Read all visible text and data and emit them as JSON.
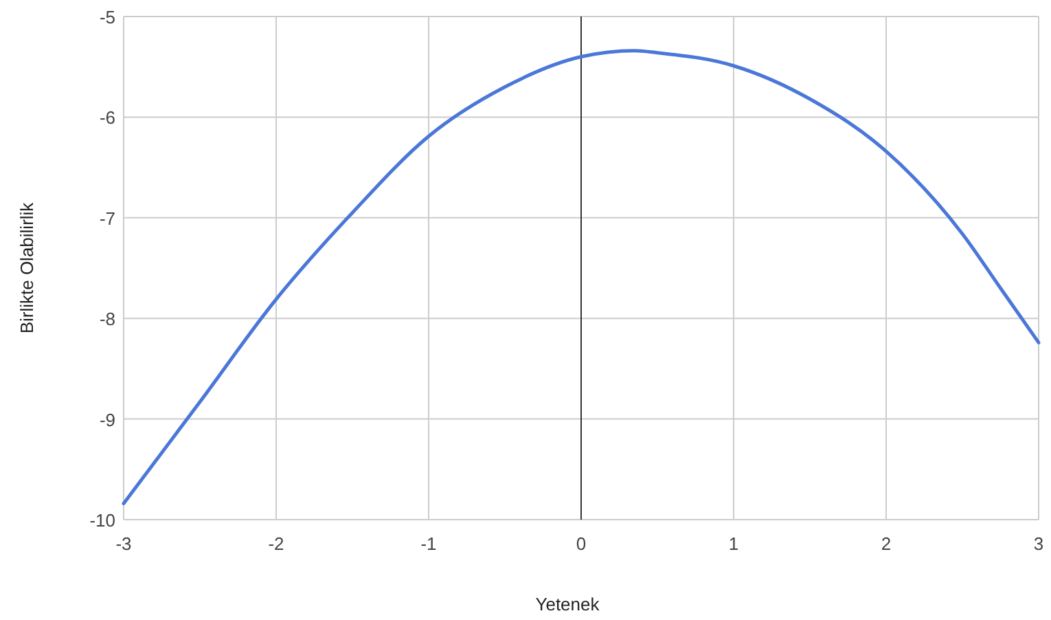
{
  "chart_data": {
    "type": "line",
    "xlabel": "Yetenek",
    "ylabel": "Birlikte Olabilirlik",
    "x": [
      -3,
      -2.5,
      -2,
      -1.5,
      -1,
      -0.5,
      0,
      0.35,
      0.5,
      1,
      1.5,
      2,
      2.5,
      2.75,
      3
    ],
    "series": [
      {
        "color": "#4a77d8",
        "values": [
          -9.84,
          -8.83,
          -7.81,
          -6.95,
          -6.19,
          -5.7,
          -5.4,
          -5.34,
          -5.36,
          -5.49,
          -5.82,
          -6.34,
          -7.16,
          -7.7,
          -8.24
        ]
      }
    ],
    "xlim": [
      -3,
      3
    ],
    "xticks": [
      -3,
      -2,
      -1,
      0,
      1,
      2,
      3
    ],
    "ylim": [
      -10,
      -5
    ],
    "yticks": [
      -10,
      -9,
      -8,
      -7,
      -6,
      -5
    ],
    "grid": true,
    "marker": "none",
    "line_style": "solid",
    "ref_lines": [
      {
        "axis": "x",
        "value": 0,
        "color": "#333333"
      }
    ]
  }
}
